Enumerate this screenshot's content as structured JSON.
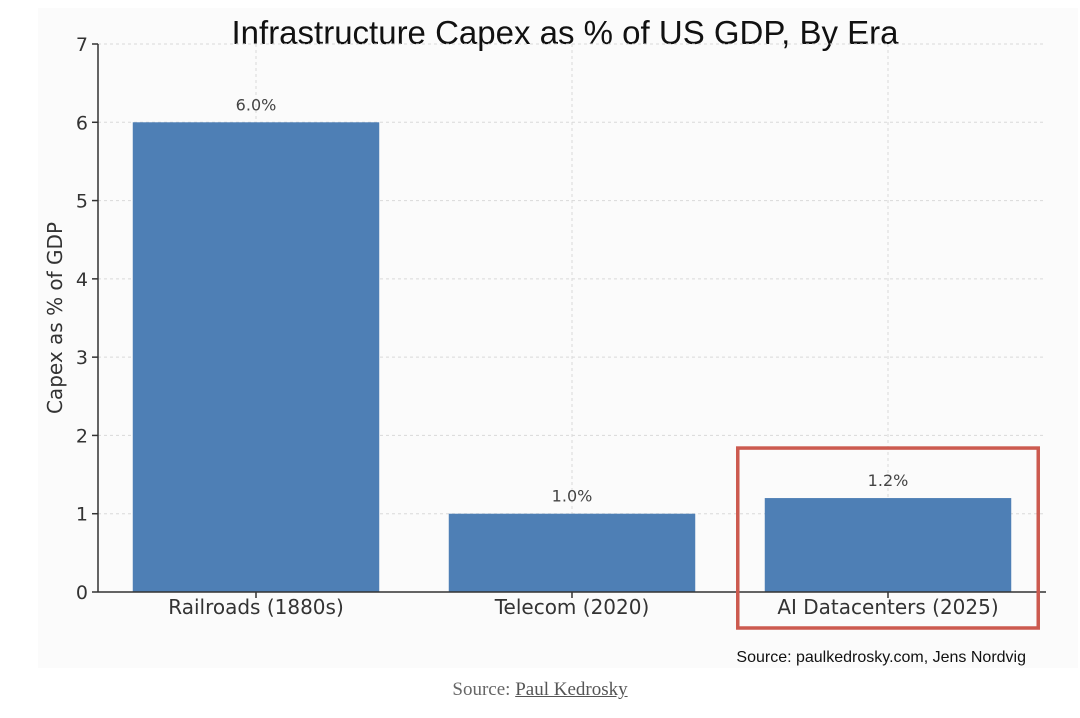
{
  "chart_data": {
    "type": "bar",
    "title": "Infrastructure Capex as % of US GDP, By Era",
    "ylabel": "Capex as % of GDP",
    "xlabel": "",
    "categories": [
      "Railroads (1880s)",
      "Telecom (2020)",
      "AI Datacenters (2025)"
    ],
    "values": [
      6.0,
      1.0,
      1.2
    ],
    "value_labels": [
      "6.0%",
      "1.0%",
      "1.2%"
    ],
    "ylim": [
      0,
      7
    ],
    "yticks": [
      0,
      1,
      2,
      3,
      4,
      5,
      6,
      7
    ],
    "grid": true,
    "bar_color": "#4e7fb5",
    "highlight": {
      "category_index": 2,
      "color": "#cc5a4f"
    },
    "annotation": "Source: paulkedrosky.com, Jens Nordvig"
  },
  "caption": {
    "prefix": "Source: ",
    "link_text": "Paul Kedrosky"
  }
}
